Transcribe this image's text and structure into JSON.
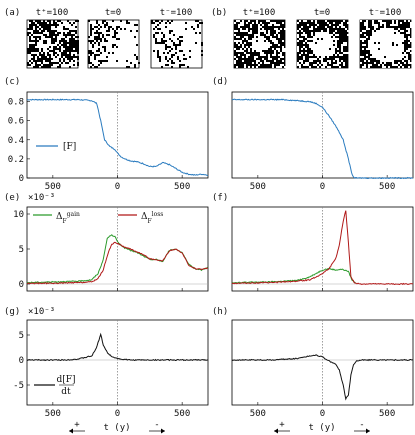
{
  "figure": {
    "panel_letters": [
      "(a)",
      "(b)",
      "(c)",
      "(d)",
      "(e)",
      "(f)",
      "(g)",
      "(h)"
    ],
    "snapshot_labels_a": [
      "t⁺=100",
      "t=0",
      "t⁻=100"
    ],
    "snapshot_labels_b": [
      "t⁺=100",
      "t=0",
      "t⁻=100"
    ],
    "scale_e": "×10⁻³",
    "scale_g": "×10⁻³",
    "xlabel_main": "t (y)",
    "xlabel_plus": "+",
    "xlabel_minus": "-",
    "legend_c": "[F]",
    "legend_e_gain": "ΔF^gain",
    "legend_e_loss": "ΔF^loss",
    "legend_g": "d[F]/dt",
    "colors": {
      "F": "#2a7bbf",
      "gain": "#2a9a2a",
      "loss": "#b01818",
      "deriv": "#111111",
      "grid": "#888888"
    }
  },
  "chart_data": [
    {
      "type": "line",
      "panel": "c",
      "xticks": [
        "500",
        "0",
        "500"
      ],
      "yticks": [
        "0",
        "0.2",
        "0.4",
        "0.6",
        "0.8"
      ],
      "xlim": [
        -700,
        700
      ],
      "ylim": [
        0,
        0.9
      ],
      "series": [
        {
          "name": "[F]",
          "x": [
            -700,
            -500,
            -300,
            -200,
            -160,
            -130,
            -100,
            -60,
            -20,
            0,
            30,
            60,
            100,
            150,
            200,
            250,
            300,
            350,
            400,
            450,
            500,
            550,
            600,
            650,
            700
          ],
          "y": [
            0.82,
            0.82,
            0.82,
            0.81,
            0.78,
            0.6,
            0.4,
            0.33,
            0.3,
            0.26,
            0.22,
            0.2,
            0.18,
            0.17,
            0.15,
            0.12,
            0.12,
            0.16,
            0.14,
            0.1,
            0.06,
            0.04,
            0.03,
            0.04,
            0.03
          ]
        }
      ]
    },
    {
      "type": "line",
      "panel": "d",
      "xticks": [
        "500",
        "0",
        "500"
      ],
      "yticks": [],
      "xlim": [
        -700,
        700
      ],
      "ylim": [
        0,
        0.9
      ],
      "series": [
        {
          "name": "[F]",
          "x": [
            -700,
            -500,
            -300,
            -200,
            -100,
            -50,
            0,
            50,
            100,
            130,
            160,
            200,
            230,
            250,
            300,
            500,
            700
          ],
          "y": [
            0.82,
            0.82,
            0.82,
            0.81,
            0.8,
            0.78,
            0.74,
            0.65,
            0.55,
            0.48,
            0.4,
            0.2,
            0.03,
            0,
            0,
            0,
            0
          ]
        }
      ]
    },
    {
      "type": "line",
      "panel": "e",
      "xticks": [],
      "yticks": [
        "0",
        "5",
        "10"
      ],
      "xlim": [
        -700,
        700
      ],
      "ylim": [
        -1,
        11
      ],
      "series": [
        {
          "name": "gain",
          "x": [
            -700,
            -500,
            -300,
            -200,
            -150,
            -110,
            -80,
            -50,
            -20,
            0,
            50,
            100,
            150,
            200,
            250,
            300,
            350,
            400,
            450,
            500,
            550,
            600,
            650,
            700
          ],
          "y": [
            0.2,
            0.3,
            0.4,
            0.6,
            1.5,
            3.5,
            6.5,
            7.0,
            6.8,
            6.0,
            5.2,
            4.8,
            4.5,
            4.0,
            3.5,
            3.5,
            3.2,
            4.8,
            5.0,
            4.5,
            2.8,
            2.2,
            2.0,
            2.4
          ]
        },
        {
          "name": "loss",
          "x": [
            -700,
            -500,
            -300,
            -200,
            -150,
            -110,
            -80,
            -50,
            -20,
            0,
            50,
            100,
            150,
            200,
            250,
            300,
            350,
            400,
            450,
            500,
            550,
            600,
            650,
            700
          ],
          "y": [
            0.1,
            0.1,
            0.2,
            0.3,
            0.8,
            2.0,
            4.0,
            5.5,
            6.0,
            5.8,
            5.3,
            5.0,
            4.6,
            4.2,
            3.6,
            3.4,
            3.3,
            4.7,
            5.0,
            4.4,
            2.7,
            2.2,
            2.1,
            2.3
          ]
        }
      ]
    },
    {
      "type": "line",
      "panel": "f",
      "xticks": [],
      "yticks": [],
      "xlim": [
        -700,
        700
      ],
      "ylim": [
        -1,
        11
      ],
      "series": [
        {
          "name": "gain",
          "x": [
            -700,
            -400,
            -200,
            -100,
            -50,
            0,
            50,
            100,
            150,
            200,
            230,
            260
          ],
          "y": [
            0.2,
            0.3,
            0.5,
            1.0,
            1.5,
            2.0,
            2.2,
            2.0,
            2.1,
            1.8,
            0.5,
            0.1
          ]
        },
        {
          "name": "loss",
          "x": [
            -700,
            -400,
            -200,
            -100,
            -50,
            0,
            50,
            100,
            130,
            160,
            180,
            200,
            220,
            250,
            300,
            400,
            500,
            700
          ],
          "y": [
            0.1,
            0.2,
            0.4,
            0.6,
            1.0,
            1.5,
            2.2,
            3.5,
            5.5,
            9.0,
            10.5,
            6.0,
            1.0,
            0.1,
            0.0,
            0.0,
            0.0,
            0.0
          ]
        }
      ]
    },
    {
      "type": "line",
      "panel": "g",
      "xticks": [
        "500",
        "0",
        "500"
      ],
      "yticks": [
        "-5",
        "0",
        "5"
      ],
      "xlim": [
        -700,
        700
      ],
      "ylim": [
        -9,
        8
      ],
      "series": [
        {
          "name": "d[F]/dt",
          "x": [
            -700,
            -400,
            -300,
            -200,
            -170,
            -150,
            -130,
            -110,
            -80,
            -50,
            0,
            50,
            100,
            200,
            300,
            400,
            500,
            700
          ],
          "y": [
            0,
            0,
            0.2,
            0.8,
            2.0,
            3.5,
            5.2,
            3.0,
            1.5,
            0.8,
            0.3,
            0.1,
            0,
            0,
            0,
            0,
            0,
            0
          ]
        }
      ]
    },
    {
      "type": "line",
      "panel": "h",
      "xticks": [
        "500",
        "0",
        "500"
      ],
      "yticks": [],
      "xlim": [
        -700,
        700
      ],
      "ylim": [
        -9,
        8
      ],
      "series": [
        {
          "name": "d[F]/dt",
          "x": [
            -700,
            -400,
            -200,
            -100,
            -50,
            0,
            50,
            100,
            130,
            160,
            180,
            200,
            220,
            240,
            260,
            300,
            400,
            700
          ],
          "y": [
            0,
            0,
            0.3,
            0.8,
            1.0,
            0.6,
            -0.2,
            -0.8,
            -2.0,
            -5.0,
            -7.8,
            -7.0,
            -3.0,
            -1.0,
            -0.2,
            0,
            0,
            0
          ]
        }
      ]
    }
  ]
}
